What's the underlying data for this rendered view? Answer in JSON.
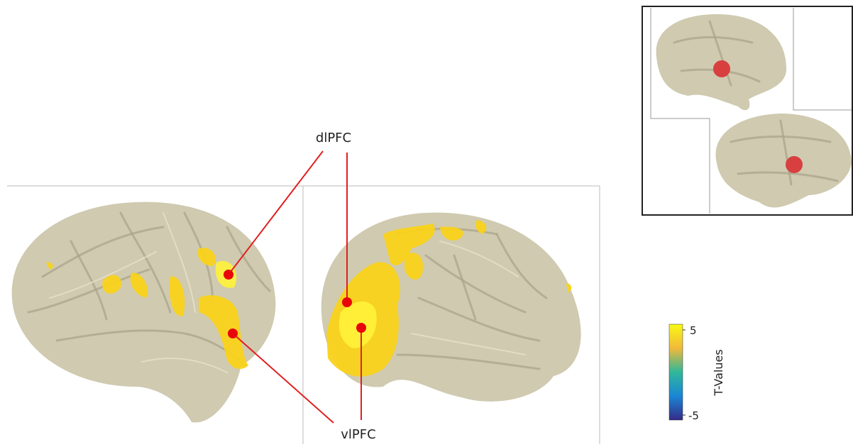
{
  "labels": {
    "upper": "dlPFC",
    "lower": "vlPFC"
  },
  "colorbar": {
    "label": "T-Values",
    "top": "5",
    "bottom": "-5"
  }
}
